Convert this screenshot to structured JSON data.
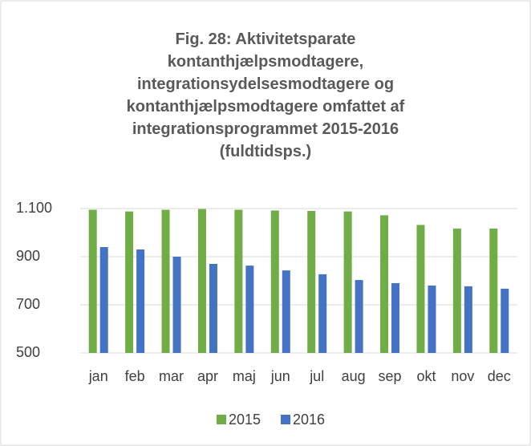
{
  "chart_data": {
    "type": "bar",
    "title": "Fig. 28: Aktivitetsparate kontanthjælpsmodtagere, integrationsydelsesmodtagere og kontanthjælpsmodtagere omfattet af integrationsprogrammet 2015-2016 (fuldtidsps.)",
    "categories": [
      "jan",
      "feb",
      "mar",
      "apr",
      "maj",
      "jun",
      "jul",
      "aug",
      "sep",
      "okt",
      "nov",
      "dec"
    ],
    "series": [
      {
        "name": "2015",
        "color": "#70ad47",
        "values": [
          1095,
          1088,
          1095,
          1098,
          1095,
          1092,
          1090,
          1088,
          1072,
          1032,
          1017,
          1017
        ]
      },
      {
        "name": "2016",
        "color": "#4472c4",
        "values": [
          940,
          930,
          900,
          870,
          863,
          843,
          827,
          803,
          790,
          780,
          777,
          767
        ]
      }
    ],
    "ylim": [
      500,
      1100
    ],
    "yticks": [
      500,
      700,
      900,
      {
        "value": 1100,
        "label": "1.100"
      }
    ],
    "grid": true,
    "legend": "bottom"
  }
}
